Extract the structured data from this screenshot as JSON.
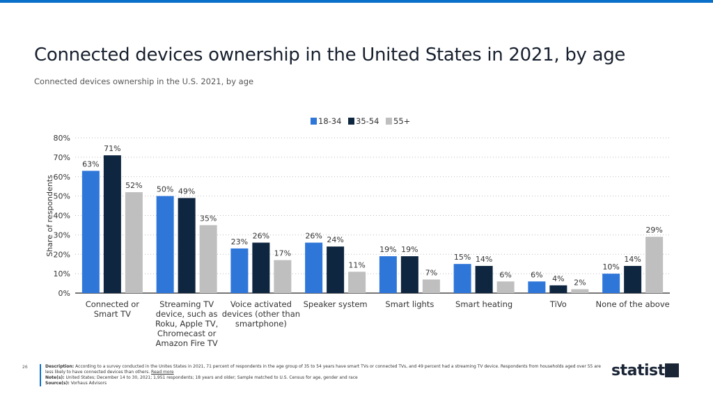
{
  "title": "Connected devices ownership in the United States in 2021, by age",
  "subtitle": "Connected devices ownership in the U.S. 2021, by age",
  "page_number": "26",
  "footer": {
    "description_label": "Description:",
    "description": "According to a survey conducted in the Unites States in 2021, 71 percent of respondents in the age group of 35 to 54 years have smart TVs or connected TVs, and 49 percent had a streaming TV device. Respondents from households aged over 55 are less likely to have connected devices than others.",
    "read_more": "Read more",
    "notes_label": "Note(s):",
    "notes": "United States; December 14 to 30, 2021; 1,951 respondents; 18 years and older; Sample matched to U.S. Census for age, gender and race",
    "source_label": "Source(s):",
    "source": "Vorhaus Advisors"
  },
  "logo": "statista",
  "chart_data": {
    "type": "bar",
    "title": "",
    "ylabel": "Share of respondents",
    "xlabel": "",
    "ylim": [
      0,
      80
    ],
    "yticks": [
      "0%",
      "10%",
      "20%",
      "30%",
      "40%",
      "50%",
      "60%",
      "70%",
      "80%"
    ],
    "grid": true,
    "legend_position": "top",
    "categories": [
      [
        "Connected or",
        "Smart TV"
      ],
      [
        "Streaming TV",
        "device, such as",
        "Roku, Apple TV,",
        "Chromecast or",
        "Amazon Fire TV"
      ],
      [
        "Voice activated",
        "devices (other than",
        "smartphone)"
      ],
      [
        "Speaker system"
      ],
      [
        "Smart lights"
      ],
      [
        "Smart heating"
      ],
      [
        "TiVo"
      ],
      [
        "None of the above"
      ]
    ],
    "series": [
      {
        "name": "18-34",
        "color": "#2f76d9",
        "values": [
          63,
          50,
          23,
          26,
          19,
          15,
          6,
          10
        ]
      },
      {
        "name": "35-54",
        "color": "#0f2640",
        "values": [
          71,
          49,
          26,
          24,
          19,
          14,
          4,
          14
        ]
      },
      {
        "name": "55+",
        "color": "#bfbfbf",
        "values": [
          52,
          35,
          17,
          11,
          7,
          6,
          2,
          29
        ]
      }
    ]
  }
}
